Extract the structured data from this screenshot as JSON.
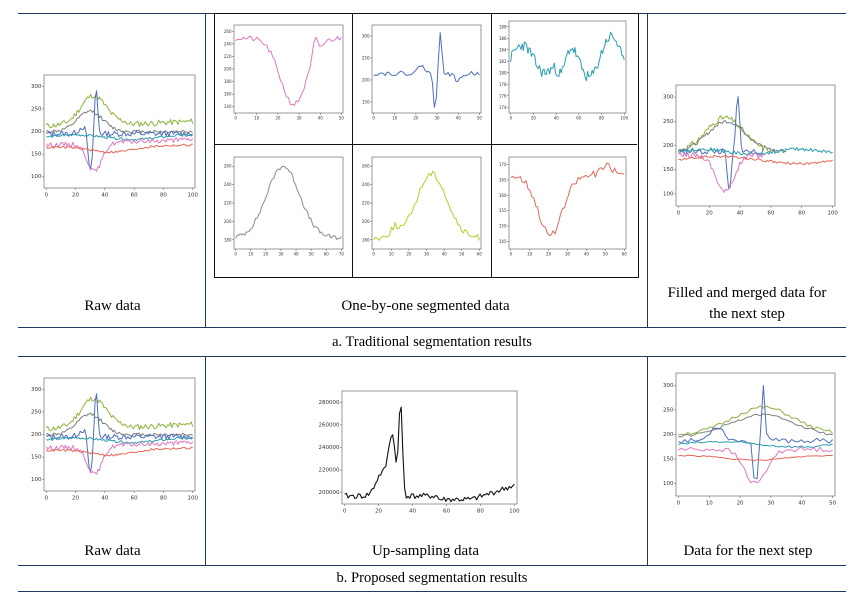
{
  "section_a": {
    "caption": "a. Traditional segmentation results",
    "raw_label": "Raw data",
    "segmented_label": "One-by-one segmented data",
    "merged_label": "Filled and merged data for the next step"
  },
  "section_b": {
    "caption": "b. Proposed segmentation results",
    "raw_label": "Raw data",
    "upsampling_label": "Up-sampling data",
    "next_label": "Data for the next step"
  },
  "chart_data": [
    {
      "id": "raw-data-a",
      "type": "line",
      "xlim": [
        0,
        100
      ],
      "ylim": [
        80,
        320
      ],
      "xticks": [
        "0",
        "20",
        "40",
        "60",
        "80",
        "100"
      ],
      "yticks": [
        "100",
        "150",
        "200",
        "250",
        "300"
      ],
      "series_colors": [
        "#8db33a",
        "#4f6fbf",
        "#2a9db0",
        "#7f7f7f",
        "#e377c2",
        "#e8685a"
      ]
    },
    {
      "id": "segment-pink",
      "type": "line",
      "color": "#e377c2",
      "xticks": [
        "0",
        "10",
        "20",
        "30",
        "40",
        "50"
      ],
      "yticks": [
        "140",
        "160",
        "180",
        "200",
        "220",
        "240",
        "260"
      ]
    },
    {
      "id": "segment-blue",
      "type": "line",
      "color": "#4f6fbf",
      "xticks": [
        "0",
        "10",
        "20",
        "30",
        "40",
        "50"
      ],
      "yticks": [
        "150",
        "200",
        "250",
        "300"
      ]
    },
    {
      "id": "segment-teal",
      "type": "line",
      "color": "#2a9db0",
      "xticks": [
        "0",
        "20",
        "40",
        "60",
        "80",
        "100"
      ],
      "yticks": [
        "174",
        "176",
        "178",
        "180",
        "182",
        "184",
        "186",
        "188"
      ]
    },
    {
      "id": "segment-gray",
      "type": "line",
      "color": "#8c8c8c",
      "xticks": [
        "0",
        "10",
        "20",
        "30",
        "40",
        "50",
        "60",
        "70"
      ],
      "yticks": [
        "180",
        "200",
        "220",
        "240",
        "260"
      ]
    },
    {
      "id": "segment-green",
      "type": "line",
      "color": "#b5cf2a",
      "xticks": [
        "0",
        "10",
        "20",
        "30",
        "40",
        "50",
        "60"
      ],
      "yticks": [
        "180",
        "200",
        "220",
        "240",
        "260"
      ]
    },
    {
      "id": "segment-red",
      "type": "line",
      "color": "#e8685a",
      "xticks": [
        "0",
        "10",
        "20",
        "30",
        "40",
        "50",
        "60"
      ],
      "yticks": [
        "145",
        "150",
        "155",
        "160",
        "165",
        "170"
      ]
    },
    {
      "id": "merged-data",
      "type": "line",
      "xlim": [
        0,
        100
      ],
      "ylim": [
        80,
        320
      ],
      "xticks": [
        "0",
        "20",
        "40",
        "60",
        "80",
        "100"
      ],
      "yticks": [
        "100",
        "150",
        "200",
        "250",
        "300"
      ]
    },
    {
      "id": "raw-data-b",
      "type": "line",
      "xlim": [
        0,
        100
      ],
      "ylim": [
        80,
        320
      ],
      "xticks": [
        "0",
        "20",
        "40",
        "60",
        "80",
        "100"
      ],
      "yticks": [
        "100",
        "150",
        "200",
        "250",
        "300"
      ]
    },
    {
      "id": "upsampling-data",
      "type": "line",
      "color": "#111111",
      "xlim": [
        0,
        100
      ],
      "ylim": [
        195000,
        295000
      ],
      "xticks": [
        "0",
        "20",
        "40",
        "60",
        "80",
        "100"
      ],
      "yticks": [
        "200000",
        "220000",
        "240000",
        "260000",
        "280000"
      ]
    },
    {
      "id": "next-step-data",
      "type": "line",
      "xlim": [
        0,
        50
      ],
      "ylim": [
        80,
        320
      ],
      "xticks": [
        "0",
        "10",
        "20",
        "30",
        "40",
        "50"
      ],
      "yticks": [
        "100",
        "150",
        "200",
        "250",
        "300"
      ]
    }
  ]
}
